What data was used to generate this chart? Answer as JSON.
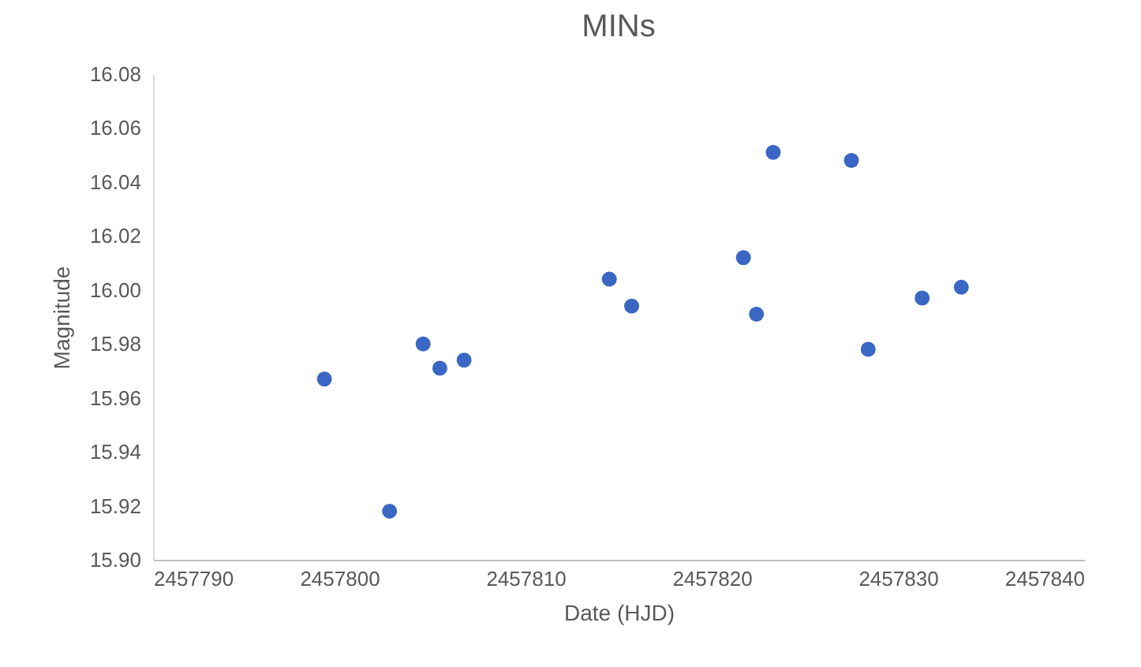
{
  "chart_data": {
    "type": "scatter",
    "title": "MINs",
    "xlabel": "Date (HJD)",
    "ylabel": "Magnitude",
    "x": [
      2457799.2,
      2457802.7,
      2457804.5,
      2457805.4,
      2457806.7,
      2457814.5,
      2457815.7,
      2457821.7,
      2457822.4,
      2457823.3,
      2457827.5,
      2457828.4,
      2457831.3,
      2457833.4
    ],
    "series": [
      {
        "color": "#3a66c4",
        "values": [
          15.967,
          15.918,
          15.98,
          15.971,
          15.974,
          16.004,
          15.994,
          16.012,
          15.991,
          16.051,
          16.048,
          15.978,
          15.997,
          16.001
        ]
      }
    ],
    "xlim": [
      2457790,
      2457840
    ],
    "xticks": [
      2457790,
      2457800,
      2457810,
      2457820,
      2457830,
      2457840
    ],
    "ylim": [
      15.9,
      16.08
    ],
    "yticks": [
      {
        "value": 15.9,
        "label": "15.90"
      },
      {
        "value": 15.92,
        "label": "15.92"
      },
      {
        "value": 15.94,
        "label": "15.94"
      },
      {
        "value": 15.96,
        "label": "15.96"
      },
      {
        "value": 15.98,
        "label": "15.98"
      },
      {
        "value": 16,
        "label": "16.00"
      },
      {
        "value": 16.02,
        "label": "16.02"
      },
      {
        "value": 16.04,
        "label": "16.04"
      },
      {
        "value": 16.06,
        "label": "16.06"
      },
      {
        "value": 16.08,
        "label": "16.08"
      }
    ],
    "grid": false,
    "legend": false,
    "marker": "circle"
  }
}
